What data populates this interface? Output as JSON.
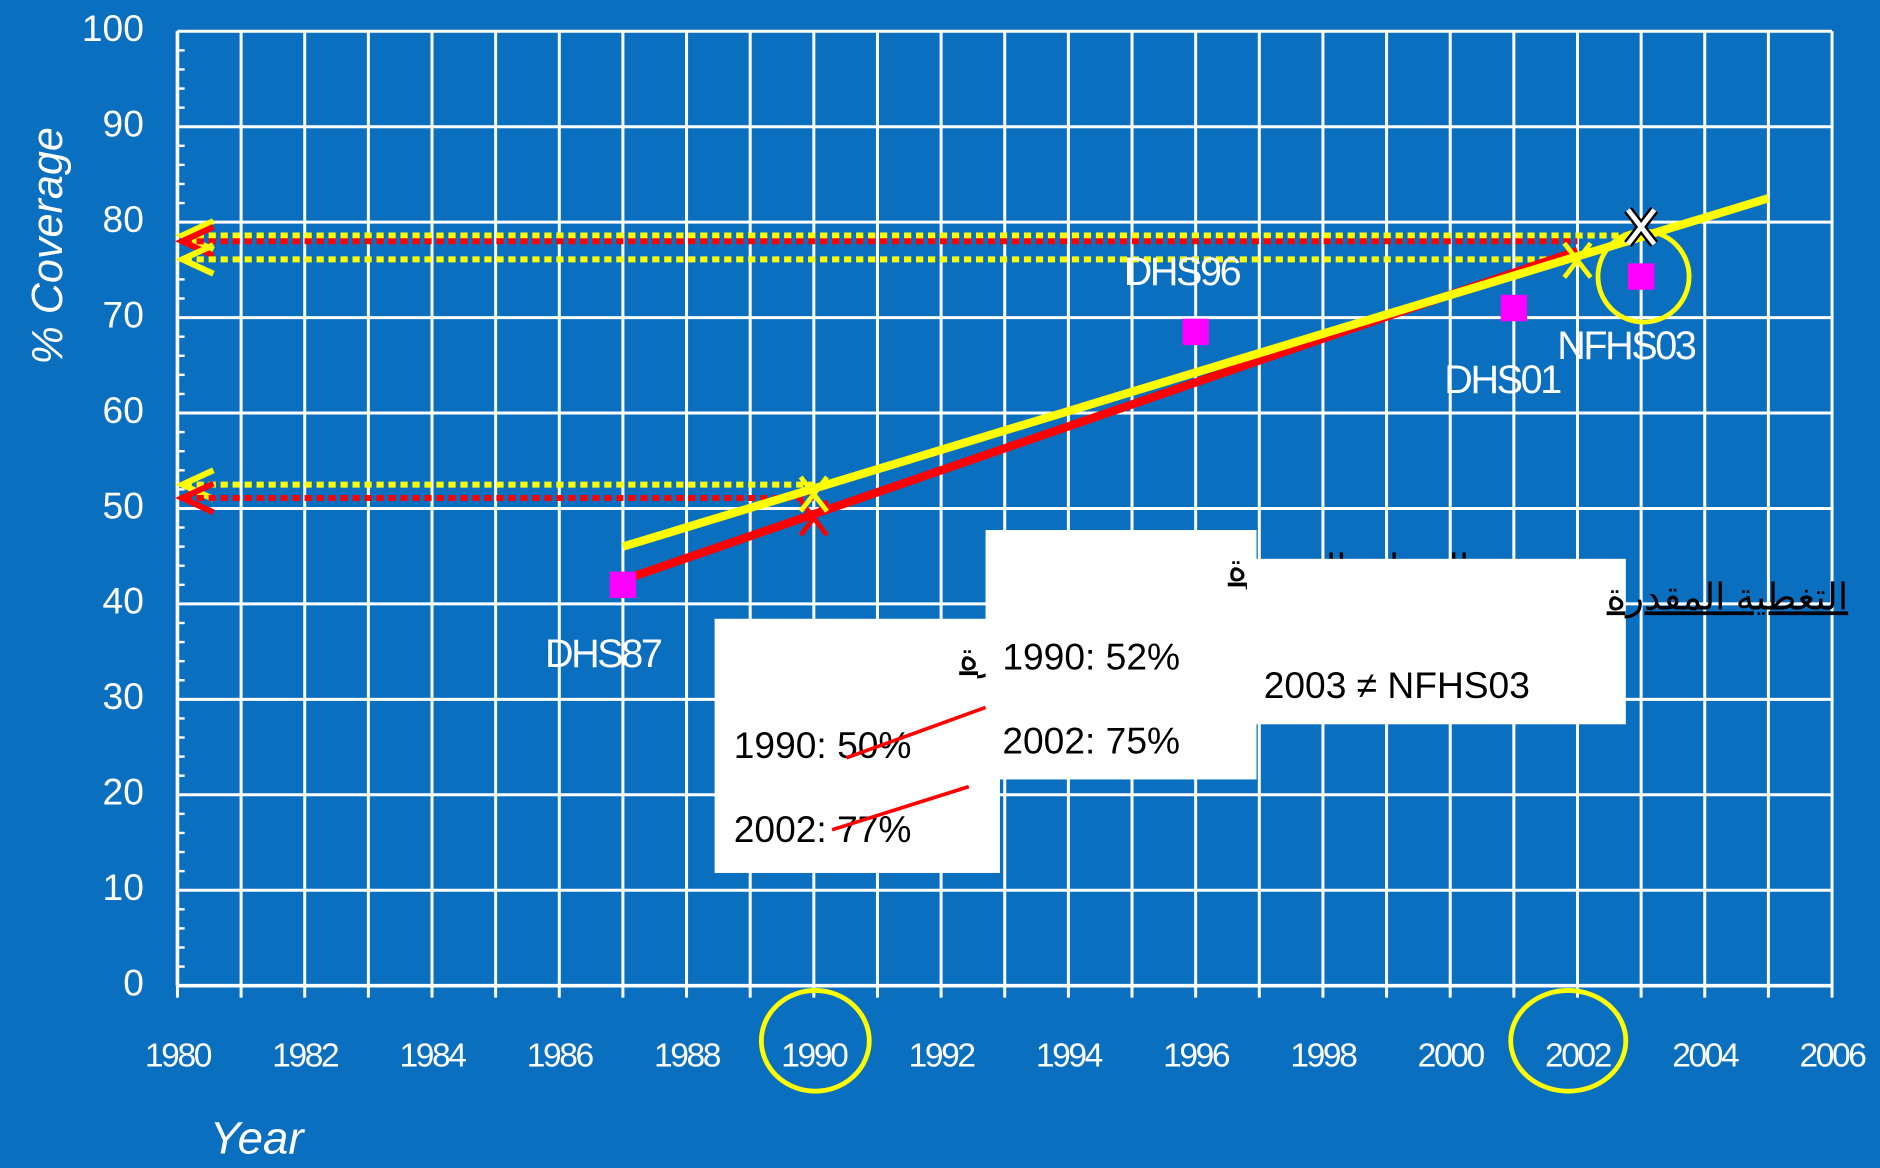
{
  "chart_data": {
    "type": "scatter",
    "y_label": "% Coverage",
    "x_label": "Year",
    "xlim": [
      1980,
      2006
    ],
    "xticks": [
      1980,
      1982,
      1984,
      1986,
      1988,
      1990,
      1992,
      1994,
      1996,
      1998,
      2000,
      2002,
      2004,
      2006
    ],
    "ylim": [
      0,
      100
    ],
    "yticks": [
      0,
      10,
      20,
      30,
      40,
      50,
      60,
      70,
      80,
      90,
      100
    ],
    "grid": true,
    "points": {
      "color": "#ff00ff",
      "x": [
        1987,
        1996,
        2001,
        2003
      ],
      "values": [
        42,
        68.5,
        71,
        74.3
      ],
      "labels": [
        "DHS87",
        "DHS96",
        "DHS01",
        "NFHS03"
      ]
    },
    "series": [
      {
        "color": "#ff0000",
        "x": [
          1987,
          2002
        ],
        "values": [
          42.5,
          77
        ]
      },
      {
        "color": "#ffff00",
        "x": [
          1987,
          2005
        ],
        "values": [
          46,
          82.5
        ]
      }
    ],
    "ref_lines": [
      {
        "color": "#ffff00",
        "value": 78.6,
        "x": 2003
      },
      {
        "color": "#ff0000",
        "value": 78,
        "x": 2002
      },
      {
        "color": "#ffff00",
        "value": 76.1,
        "x": 2002
      },
      {
        "color": "#ffff00",
        "value": 52.5,
        "x": 1990
      },
      {
        "color": "#ff0000",
        "value": 51.1,
        "x": 1990
      }
    ],
    "markers": [
      {
        "color": "#ff0000",
        "x": 1990,
        "value": 49
      },
      {
        "color": "#ffff00",
        "x": 1990,
        "value": 51.5
      },
      {
        "color": "#ffff00",
        "x": 2002,
        "value": 76
      },
      {
        "color": "#ffffff",
        "x": 2003,
        "value": 79.5
      }
    ],
    "annotations": [
      {
        "lines": [
          "التغطية المقدرة",
          "1990: 50%",
          "2002: 77%"
        ]
      },
      {
        "lines": [
          "التغطية المقدرة",
          "1990: 52%",
          "2002: 75%"
        ]
      },
      {
        "lines": [
          "التغطية المقدرة",
          "2003 ≠ NFHS03"
        ]
      }
    ]
  }
}
